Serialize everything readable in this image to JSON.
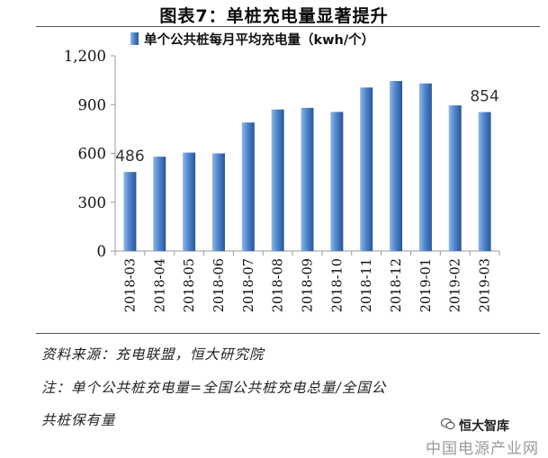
{
  "figure": {
    "title": "图表7：单桩充电量显著提升",
    "source": "资料来源：充电联盟，恒大研究院",
    "note_line1": "注：单个公共桩充电量=全国公共桩充电总量/全国公",
    "note_line2": "共桩保有量"
  },
  "watermark": {
    "brand": "恒大智库",
    "site": "中国电源产业网"
  },
  "colors": {
    "bar_top": "#6f9fd8",
    "bar_mid": "#3f74bd",
    "bar_dark": "#24508f",
    "axis": "#999999"
  },
  "chart_data": {
    "type": "bar",
    "legend": "单个公共桩每月平均充电量（kwh/个）",
    "legend_position": "top",
    "categories": [
      "2018-03",
      "2018-04",
      "2018-05",
      "2018-06",
      "2018-07",
      "2018-08",
      "2018-09",
      "2018-10",
      "2018-11",
      "2018-12",
      "2019-01",
      "2019-02",
      "2019-03"
    ],
    "values": [
      486,
      580,
      605,
      600,
      790,
      870,
      880,
      855,
      1005,
      1045,
      1030,
      895,
      854
    ],
    "data_labels": [
      {
        "index": 0,
        "text": "486"
      },
      {
        "index": 12,
        "text": "854"
      }
    ],
    "yticks": [
      0,
      300,
      600,
      900,
      1200
    ],
    "ytick_labels": [
      "0",
      "300",
      "600",
      "900",
      "1,200"
    ],
    "ylim": [
      0,
      1200
    ],
    "grid": false
  }
}
